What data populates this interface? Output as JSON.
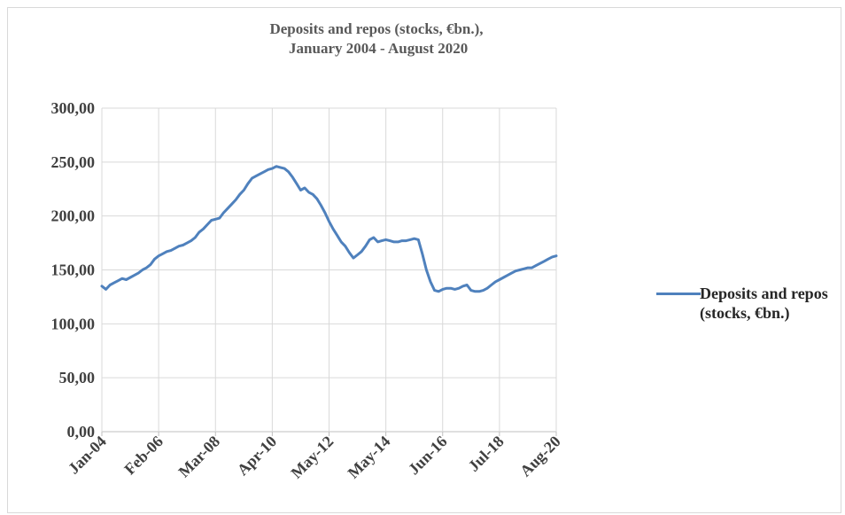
{
  "chart_data": {
    "type": "line",
    "title": [
      "Deposits and repos (stocks, €bn.),",
      " January 2004 - August 2020"
    ],
    "xlabel": "",
    "ylabel": "",
    "ylim": [
      0,
      300
    ],
    "yticks": [
      "0,00",
      "50,00",
      "100,00",
      "150,00",
      "200,00",
      "250,00",
      "300,00"
    ],
    "xticks": [
      "Jan-04",
      "Feb-06",
      "Mar-08",
      "Apr-10",
      "May-12",
      "May-14",
      "Jun-16",
      "Jul-18",
      "Aug-20"
    ],
    "grid": true,
    "legend": "right",
    "series": [
      {
        "name": "Deposits and repos (stocks, €bn.)",
        "color": "#4f81bd",
        "points": [
          [
            0,
            135
          ],
          [
            1,
            132
          ],
          [
            2,
            136
          ],
          [
            3,
            138
          ],
          [
            4,
            140
          ],
          [
            5,
            142
          ],
          [
            6,
            141
          ],
          [
            7,
            143
          ],
          [
            8,
            145
          ],
          [
            9,
            147
          ],
          [
            10,
            150
          ],
          [
            11,
            152
          ],
          [
            12,
            155
          ],
          [
            13,
            160
          ],
          [
            14,
            163
          ],
          [
            15,
            165
          ],
          [
            16,
            167
          ],
          [
            17,
            168
          ],
          [
            18,
            170
          ],
          [
            19,
            172
          ],
          [
            20,
            173
          ],
          [
            21,
            175
          ],
          [
            22,
            177
          ],
          [
            23,
            180
          ],
          [
            24,
            185
          ],
          [
            25,
            188
          ],
          [
            26,
            192
          ],
          [
            27,
            196
          ],
          [
            28,
            197
          ],
          [
            29,
            198
          ],
          [
            30,
            203
          ],
          [
            31,
            207
          ],
          [
            32,
            211
          ],
          [
            33,
            215
          ],
          [
            34,
            220
          ],
          [
            35,
            224
          ],
          [
            36,
            230
          ],
          [
            37,
            235
          ],
          [
            38,
            237
          ],
          [
            39,
            239
          ],
          [
            40,
            241
          ],
          [
            41,
            243
          ],
          [
            42,
            244
          ],
          [
            43,
            246
          ],
          [
            44,
            245
          ],
          [
            45,
            244
          ],
          [
            46,
            241
          ],
          [
            47,
            236
          ],
          [
            48,
            230
          ],
          [
            49,
            224
          ],
          [
            50,
            226
          ],
          [
            51,
            222
          ],
          [
            52,
            220
          ],
          [
            53,
            216
          ],
          [
            54,
            210
          ],
          [
            55,
            203
          ],
          [
            56,
            195
          ],
          [
            57,
            188
          ],
          [
            58,
            182
          ],
          [
            59,
            176
          ],
          [
            60,
            172
          ],
          [
            61,
            166
          ],
          [
            62,
            161
          ],
          [
            63,
            164
          ],
          [
            64,
            167
          ],
          [
            65,
            172
          ],
          [
            66,
            178
          ],
          [
            67,
            180
          ],
          [
            68,
            176
          ],
          [
            69,
            177
          ],
          [
            70,
            178
          ],
          [
            71,
            177
          ],
          [
            72,
            176
          ],
          [
            73,
            176
          ],
          [
            74,
            177
          ],
          [
            75,
            177
          ],
          [
            76,
            178
          ],
          [
            77,
            179
          ],
          [
            78,
            178
          ],
          [
            79,
            165
          ],
          [
            80,
            150
          ],
          [
            81,
            139
          ],
          [
            82,
            131
          ],
          [
            83,
            130
          ],
          [
            84,
            132
          ],
          [
            85,
            133
          ],
          [
            86,
            133
          ],
          [
            87,
            132
          ],
          [
            88,
            133
          ],
          [
            89,
            135
          ],
          [
            90,
            136
          ],
          [
            91,
            131
          ],
          [
            92,
            130
          ],
          [
            93,
            130
          ],
          [
            94,
            131
          ],
          [
            95,
            133
          ],
          [
            96,
            136
          ],
          [
            97,
            139
          ],
          [
            98,
            141
          ],
          [
            99,
            143
          ],
          [
            100,
            145
          ],
          [
            101,
            147
          ],
          [
            102,
            149
          ],
          [
            103,
            150
          ],
          [
            104,
            151
          ],
          [
            105,
            152
          ],
          [
            106,
            152
          ],
          [
            107,
            154
          ],
          [
            108,
            156
          ],
          [
            109,
            158
          ],
          [
            110,
            160
          ],
          [
            111,
            162
          ],
          [
            112,
            163
          ]
        ]
      }
    ]
  }
}
